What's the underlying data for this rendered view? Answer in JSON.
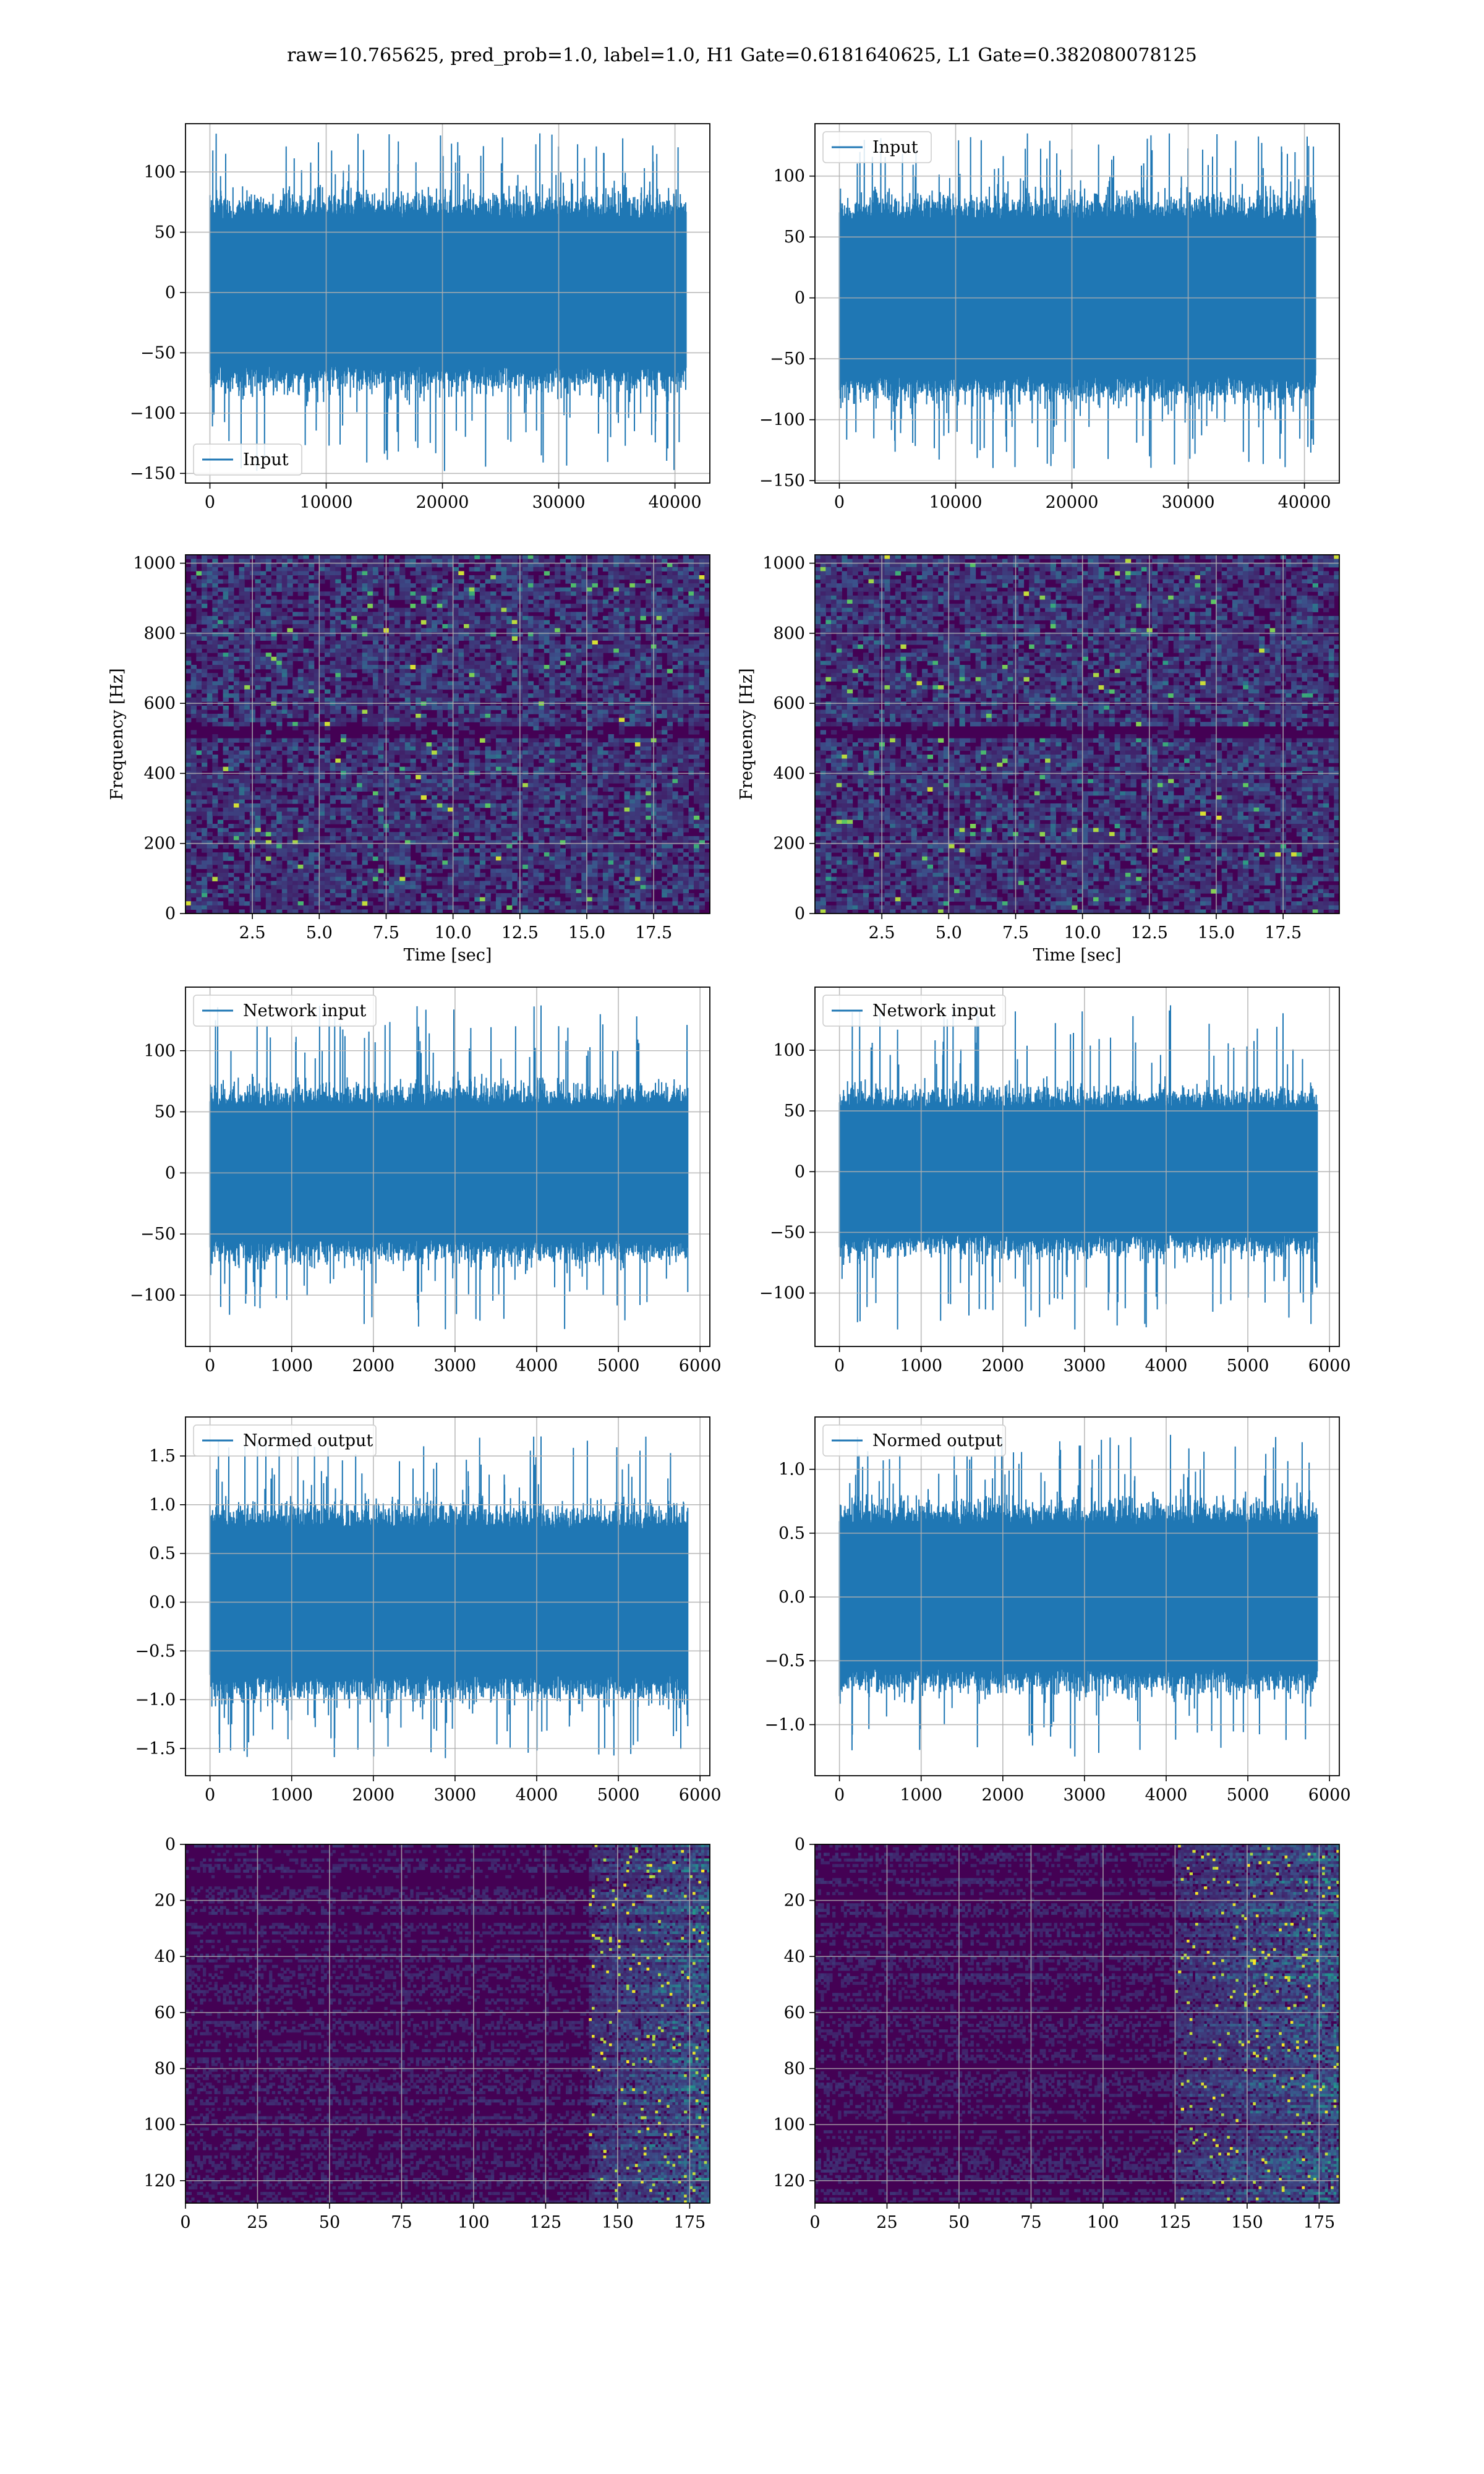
{
  "figure": {
    "title": "raw=10.765625, pred_prob=1.0, label=1.0, H1 Gate=0.6181640625, L1 Gate=0.382080078125"
  },
  "colors": {
    "line": "#1f77b4",
    "grid": "#b0b0b0",
    "viridis": [
      "#440154",
      "#3b528b",
      "#21918c",
      "#5ec962",
      "#fde725"
    ]
  },
  "chart_data": [
    {
      "id": "input-h1",
      "type": "line",
      "legend": [
        "Input"
      ],
      "legend_loc": "lower-left",
      "series": [
        {
          "name": "Input",
          "n": 40960,
          "ymin": -148,
          "ymax": 132,
          "core": 65
        }
      ],
      "xlim": [
        -2100,
        43000
      ],
      "ylim": [
        -158,
        140
      ],
      "xticks": [
        0,
        10000,
        20000,
        30000,
        40000
      ],
      "yticks": [
        -150,
        -100,
        -50,
        0,
        50,
        100
      ],
      "xlabel": "",
      "ylabel": "",
      "grid": true
    },
    {
      "id": "input-l1",
      "type": "line",
      "legend": [
        "Input"
      ],
      "legend_loc": "top-left",
      "series": [
        {
          "name": "Input",
          "n": 40960,
          "ymin": -140,
          "ymax": 135,
          "core": 68
        }
      ],
      "xlim": [
        -2100,
        43000
      ],
      "ylim": [
        -152,
        143
      ],
      "xticks": [
        0,
        10000,
        20000,
        30000,
        40000
      ],
      "yticks": [
        -150,
        -100,
        -50,
        0,
        50,
        100
      ],
      "xlabel": "",
      "ylabel": "",
      "grid": true
    },
    {
      "id": "spectrogram-h1",
      "type": "heatmap",
      "xlim": [
        0,
        19.6
      ],
      "ylim": [
        0,
        1024
      ],
      "xticks": [
        2.5,
        5.0,
        7.5,
        10.0,
        12.5,
        15.0,
        17.5
      ],
      "yticks": [
        0,
        200,
        400,
        600,
        800,
        1000
      ],
      "xticklabels": [
        "2.5",
        "5.0",
        "7.5",
        "10.0",
        "12.5",
        "15.0",
        "17.5"
      ],
      "xlabel": "Time [sec]",
      "ylabel": "Frequency [Hz]",
      "grid": true,
      "colormap": "viridis"
    },
    {
      "id": "spectrogram-l1",
      "type": "heatmap",
      "xlim": [
        0,
        19.6
      ],
      "ylim": [
        0,
        1024
      ],
      "xticks": [
        2.5,
        5.0,
        7.5,
        10.0,
        12.5,
        15.0,
        17.5
      ],
      "yticks": [
        0,
        200,
        400,
        600,
        800,
        1000
      ],
      "xticklabels": [
        "2.5",
        "5.0",
        "7.5",
        "10.0",
        "12.5",
        "15.0",
        "17.5"
      ],
      "xlabel": "Time [sec]",
      "ylabel": "Frequency [Hz]",
      "grid": true,
      "colormap": "viridis"
    },
    {
      "id": "network-input-h1",
      "type": "line",
      "legend": [
        "Network input"
      ],
      "legend_loc": "top-left",
      "series": [
        {
          "name": "Network input",
          "n": 5850,
          "ymin": -128,
          "ymax": 137,
          "core": 58
        }
      ],
      "xlim": [
        -300,
        6120
      ],
      "ylim": [
        -142,
        152
      ],
      "xticks": [
        0,
        1000,
        2000,
        3000,
        4000,
        5000,
        6000
      ],
      "yticks": [
        -100,
        -50,
        0,
        50,
        100
      ],
      "xlabel": "",
      "ylabel": "",
      "grid": true
    },
    {
      "id": "network-input-l1",
      "type": "line",
      "legend": [
        "Network input"
      ],
      "legend_loc": "top-left",
      "series": [
        {
          "name": "Network input",
          "n": 5850,
          "ymin": -130,
          "ymax": 137,
          "core": 55
        }
      ],
      "xlim": [
        -300,
        6120
      ],
      "ylim": [
        -144,
        152
      ],
      "xticks": [
        0,
        1000,
        2000,
        3000,
        4000,
        5000,
        6000
      ],
      "yticks": [
        -100,
        -50,
        0,
        50,
        100
      ],
      "xlabel": "",
      "ylabel": "",
      "grid": true
    },
    {
      "id": "normed-output-h1",
      "type": "line",
      "legend": [
        "Normed output"
      ],
      "legend_loc": "top-left",
      "series": [
        {
          "name": "Normed output",
          "n": 5850,
          "ymin": -1.6,
          "ymax": 1.7,
          "core": 0.8
        }
      ],
      "xlim": [
        -300,
        6120
      ],
      "ylim": [
        -1.78,
        1.9
      ],
      "xticks": [
        0,
        1000,
        2000,
        3000,
        4000,
        5000,
        6000
      ],
      "yticks": [
        -1.5,
        -1.0,
        -0.5,
        0.0,
        0.5,
        1.0,
        1.5
      ],
      "yticklabels": [
        "−1.5",
        "−1.0",
        "−0.5",
        "0.0",
        "0.5",
        "1.0",
        "1.5"
      ],
      "xlabel": "",
      "ylabel": "",
      "grid": true
    },
    {
      "id": "normed-output-l1",
      "type": "line",
      "legend": [
        "Normed output"
      ],
      "legend_loc": "top-left",
      "series": [
        {
          "name": "Normed output",
          "n": 5850,
          "ymin": -1.25,
          "ymax": 1.27,
          "core": 0.6
        }
      ],
      "xlim": [
        -300,
        6120
      ],
      "ylim": [
        -1.4,
        1.41
      ],
      "xticks": [
        0,
        1000,
        2000,
        3000,
        4000,
        5000,
        6000
      ],
      "yticks": [
        -1.0,
        -0.5,
        0.0,
        0.5,
        1.0
      ],
      "yticklabels": [
        "−1.0",
        "−0.5",
        "0.0",
        "0.5",
        "1.0"
      ],
      "xlabel": "",
      "ylabel": "",
      "grid": true
    },
    {
      "id": "feature-map-h1",
      "type": "heatmap",
      "xlim": [
        0,
        182
      ],
      "ylim": [
        0,
        128
      ],
      "y_inverted": true,
      "xticks": [
        0,
        25,
        50,
        75,
        100,
        125,
        150,
        175
      ],
      "yticks": [
        0,
        20,
        40,
        60,
        80,
        100,
        120
      ],
      "xlabel": "",
      "ylabel": "",
      "grid": true,
      "colormap": "viridis",
      "bright_band_x": [
        140,
        182
      ]
    },
    {
      "id": "feature-map-l1",
      "type": "heatmap",
      "xlim": [
        0,
        182
      ],
      "ylim": [
        0,
        128
      ],
      "y_inverted": true,
      "xticks": [
        0,
        25,
        50,
        75,
        100,
        125,
        150,
        175
      ],
      "yticks": [
        0,
        20,
        40,
        60,
        80,
        100,
        120
      ],
      "xlabel": "",
      "ylabel": "",
      "grid": true,
      "colormap": "viridis",
      "bright_band_x": [
        125,
        182
      ]
    }
  ]
}
